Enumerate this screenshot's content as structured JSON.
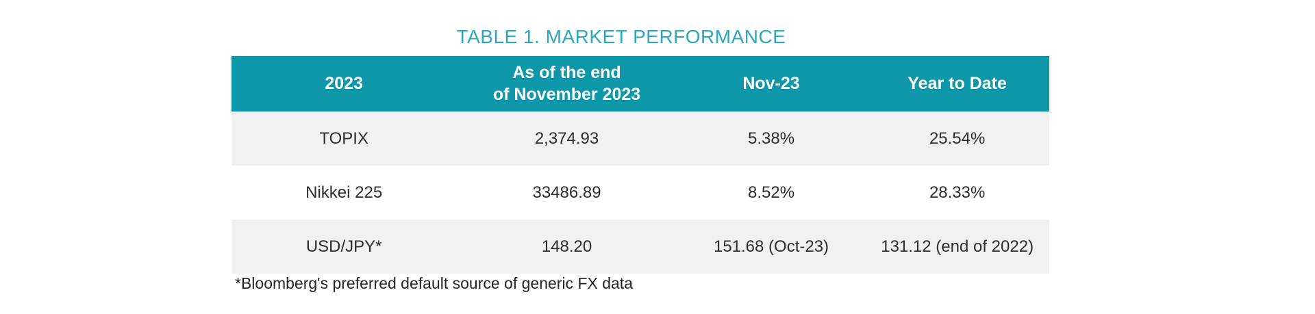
{
  "title": "TABLE 1. MARKET PERFORMANCE",
  "colors": {
    "header_bg": "#0d97a9",
    "title_text": "#2ea7bd",
    "shaded_row_bg": "#f0f0f0",
    "body_text": "#2e2e2e"
  },
  "table": {
    "headers": [
      "2023",
      "As of the end\nof November 2023",
      "Nov-23",
      "Year to Date"
    ],
    "rows": [
      {
        "cells": [
          "TOPIX",
          "2,374.93",
          "5.38%",
          "25.54%"
        ]
      },
      {
        "cells": [
          "Nikkei 225",
          "33486.89",
          "8.52%",
          "28.33%"
        ]
      },
      {
        "cells": [
          "USD/JPY*",
          "148.20",
          "151.68 (Oct-23)",
          "131.12 (end of 2022)"
        ]
      }
    ]
  },
  "footnote": "*Bloomberg's preferred default source of generic FX data"
}
